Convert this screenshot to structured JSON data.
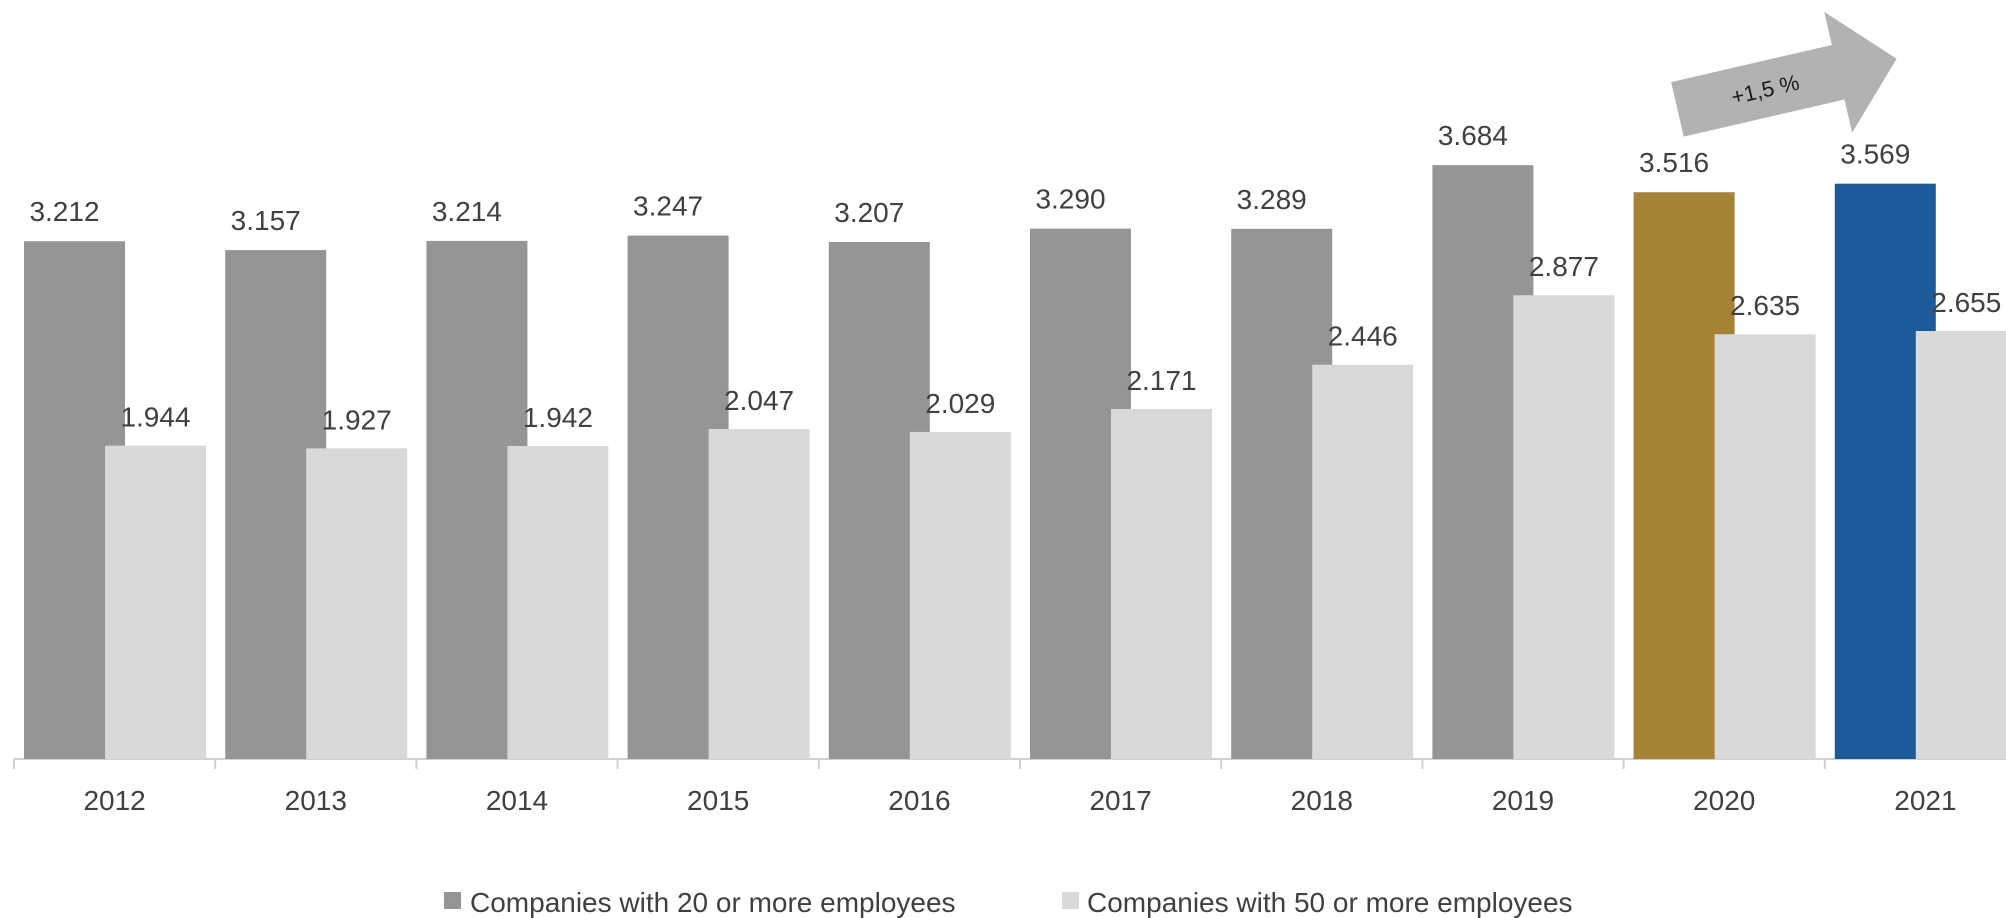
{
  "chart_data": {
    "type": "bar",
    "title": "",
    "xlabel": "",
    "ylabel": "",
    "ylim": [
      0,
      4000
    ],
    "grid": false,
    "legend_position": "bottom",
    "categories": [
      "2012",
      "2013",
      "2014",
      "2015",
      "2016",
      "2017",
      "2018",
      "2019",
      "2020",
      "2021"
    ],
    "series": [
      {
        "name": "Companies with 20 or more employees",
        "color": "#959595",
        "point_colors": {
          "2020": "#a68237",
          "2021": "#1c5b99"
        },
        "values": [
          3212,
          3157,
          3214,
          3247,
          3207,
          3290,
          3289,
          3684,
          3516,
          3569
        ],
        "labels": [
          "3.212",
          "3.157",
          "3.214",
          "3.247",
          "3.207",
          "3.290",
          "3.289",
          "3.684",
          "3.516",
          "3.569"
        ]
      },
      {
        "name": "Companies with 50 or more employees",
        "color": "#d9d9d9",
        "values": [
          1944,
          1927,
          1942,
          2047,
          2029,
          2171,
          2446,
          2877,
          2635,
          2655
        ],
        "labels": [
          "1.944",
          "1.927",
          "1.942",
          "2.047",
          "2.029",
          "2.171",
          "2.446",
          "2.877",
          "2.635",
          "2.655"
        ]
      }
    ],
    "annotations": [
      {
        "text": "+1,5 %",
        "shape": "arrow",
        "color": "#b2b2b2",
        "from": "2020",
        "to": "2021"
      }
    ]
  }
}
